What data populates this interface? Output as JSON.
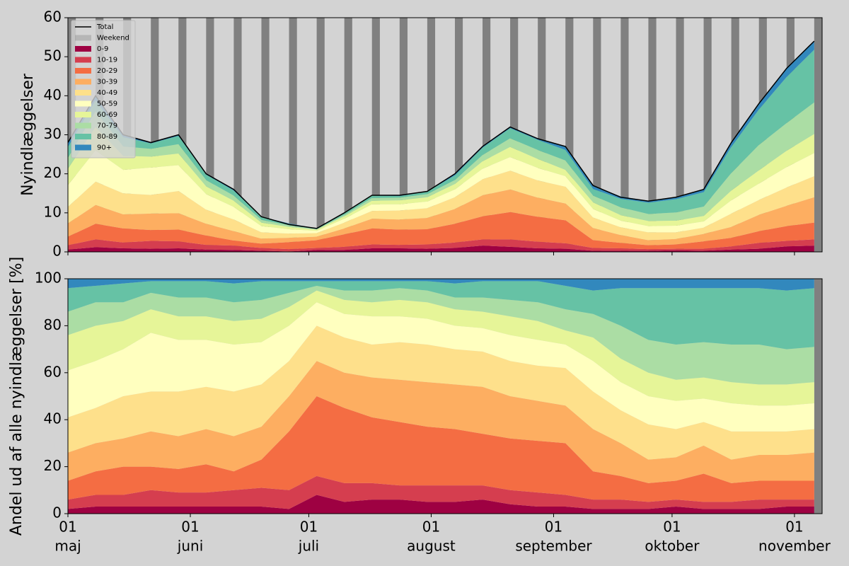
{
  "chart_data": [
    {
      "type": "stacked-area",
      "ylabel": "Nyindlæggelser",
      "xlim": [
        0,
        191
      ],
      "ylim": [
        0,
        60
      ],
      "yticks": [
        0,
        10,
        20,
        30,
        40,
        50,
        60
      ],
      "xticks": [
        0,
        31,
        61,
        92,
        123,
        153,
        184
      ],
      "legend": true,
      "legend_loc": "upper left",
      "x": [
        0,
        7,
        14,
        21,
        28,
        35,
        42,
        49,
        56,
        63,
        70,
        77,
        84,
        91,
        98,
        105,
        112,
        119,
        126,
        133,
        140,
        147,
        154,
        161,
        168,
        175,
        182,
        189
      ],
      "total": {
        "name": "Total",
        "color": "#000000",
        "values": [
          28,
          40,
          30,
          28,
          30,
          20,
          16,
          9,
          7,
          6,
          10,
          14.5,
          14.5,
          15.5,
          20,
          27,
          32,
          29,
          27,
          17,
          14,
          13,
          14,
          16,
          28,
          38,
          47,
          54
        ]
      },
      "weekends": {
        "name": "Weekend",
        "color": "#808080",
        "values": [
          [
            0,
            2
          ],
          [
            7,
            9
          ],
          [
            14,
            16
          ],
          [
            21,
            23
          ],
          [
            28,
            30
          ],
          [
            35,
            37
          ],
          [
            42,
            44
          ],
          [
            49,
            51
          ],
          [
            56,
            58
          ],
          [
            63,
            65
          ],
          [
            70,
            72
          ],
          [
            77,
            79
          ],
          [
            84,
            86
          ],
          [
            91,
            93
          ],
          [
            98,
            100
          ],
          [
            105,
            107
          ],
          [
            112,
            114
          ],
          [
            119,
            121
          ],
          [
            126,
            128
          ],
          [
            133,
            135
          ],
          [
            140,
            142
          ],
          [
            147,
            149
          ],
          [
            154,
            156
          ],
          [
            161,
            163
          ],
          [
            168,
            170
          ],
          [
            175,
            177
          ],
          [
            182,
            184
          ],
          [
            189,
            191
          ]
        ]
      },
      "series": [
        {
          "name": "0-9",
          "color": "#9e0142",
          "values": [
            0.6,
            1.2,
            0.9,
            0.8,
            0.9,
            0.6,
            0.5,
            0.3,
            0.1,
            0.5,
            0.5,
            0.9,
            0.9,
            0.8,
            1.0,
            1.6,
            1.3,
            0.9,
            0.8,
            0.3,
            0.3,
            0.3,
            0.4,
            0.3,
            0.6,
            0.8,
            1.4,
            1.6
          ]
        },
        {
          "name": "10-19",
          "color": "#d53e4f",
          "values": [
            1.1,
            2.0,
            1.5,
            2.0,
            1.8,
            1.2,
            1.1,
            0.7,
            0.6,
            0.5,
            0.8,
            1.0,
            0.9,
            1.1,
            1.4,
            1.6,
            1.9,
            1.7,
            1.4,
            0.7,
            0.6,
            0.4,
            0.4,
            0.5,
            0.8,
            1.5,
            1.4,
            1.6
          ]
        },
        {
          "name": "20-29",
          "color": "#f46d43",
          "values": [
            2.2,
            4.0,
            3.6,
            2.8,
            3.0,
            2.4,
            1.3,
            1.1,
            1.8,
            2.0,
            3.2,
            4.1,
            3.9,
            3.9,
            4.8,
            5.9,
            7.0,
            6.4,
            5.9,
            2.0,
            1.4,
            1.0,
            1.1,
            1.9,
            2.2,
            3.0,
            3.8,
            4.3
          ]
        },
        {
          "name": "30-39",
          "color": "#fdae61",
          "values": [
            3.4,
            4.8,
            3.6,
            4.2,
            4.2,
            3.0,
            2.4,
            1.3,
            1.1,
            0.9,
            1.5,
            2.5,
            2.6,
            2.9,
            3.8,
            5.4,
            5.8,
            4.9,
            4.3,
            3.1,
            2.0,
            1.3,
            1.4,
            1.9,
            2.8,
            4.2,
            5.2,
            6.5
          ]
        },
        {
          "name": "40-49",
          "color": "#fee08b",
          "values": [
            4.2,
            6.0,
            5.4,
            4.8,
            5.7,
            3.6,
            3.0,
            1.6,
            1.1,
            0.9,
            1.5,
            2.0,
            2.3,
            2.5,
            3.0,
            4.1,
            4.8,
            4.4,
            4.3,
            2.7,
            2.0,
            2.0,
            1.7,
            1.6,
            3.4,
            3.8,
            4.7,
            5.4
          ]
        },
        {
          "name": "50-59",
          "color": "#ffffbf",
          "values": [
            5.6,
            8.0,
            6.0,
            7.0,
            6.6,
            4.0,
            3.2,
            1.6,
            1.1,
            0.6,
            1.0,
            1.7,
            1.6,
            1.7,
            2.0,
            2.7,
            3.5,
            3.2,
            2.7,
            2.2,
            1.7,
            1.6,
            1.7,
            1.6,
            3.4,
            4.2,
            5.2,
            5.9
          ]
        },
        {
          "name": "60-69",
          "color": "#e6f598",
          "values": [
            4.2,
            6.0,
            3.6,
            2.8,
            3.0,
            2.0,
            1.6,
            0.9,
            0.6,
            0.3,
            0.6,
            0.9,
            1.0,
            1.1,
            1.4,
            1.9,
            2.6,
            2.3,
            1.6,
            1.7,
            1.4,
            1.3,
            1.3,
            1.4,
            2.5,
            3.4,
            4.2,
            4.9
          ]
        },
        {
          "name": "70-79",
          "color": "#abdda4",
          "values": [
            2.8,
            4.0,
            2.4,
            2.0,
            2.4,
            1.6,
            1.3,
            0.7,
            0.4,
            0.1,
            0.4,
            0.7,
            0.7,
            0.8,
            1.0,
            1.6,
            2.2,
            2.3,
            2.4,
            1.7,
            2.0,
            1.8,
            2.1,
            2.4,
            4.5,
            6.5,
            7.1,
            8.1
          ]
        },
        {
          "name": "80-89",
          "color": "#66c2a5",
          "values": [
            2.8,
            2.8,
            2.4,
            1.4,
            2.1,
            1.4,
            1.3,
            0.7,
            0.4,
            0.1,
            0.4,
            0.6,
            0.4,
            0.6,
            1.2,
            1.9,
            2.6,
            2.6,
            2.7,
            1.7,
            2.2,
            2.9,
            3.4,
            3.7,
            6.7,
            9.1,
            11.8,
            13.5
          ]
        },
        {
          "name": "90+",
          "color": "#3288bd",
          "values": [
            1.1,
            1.2,
            0.6,
            0.3,
            0.3,
            0.2,
            0.3,
            0.1,
            0.1,
            0.1,
            0.1,
            0.1,
            0.1,
            0.2,
            0.4,
            0.3,
            0.3,
            0.3,
            0.8,
            0.9,
            0.6,
            0.5,
            0.6,
            0.6,
            1.1,
            1.5,
            2.4,
            2.2
          ]
        }
      ]
    },
    {
      "type": "stacked-area",
      "ylabel": "Andel ud af alle nyindlæggelser [%]",
      "xlim": [
        0,
        191
      ],
      "ylim": [
        0,
        100
      ],
      "yticks": [
        0,
        20,
        40,
        60,
        80,
        100
      ],
      "xticks": [
        {
          "value": 0,
          "label": [
            "01",
            "maj"
          ]
        },
        {
          "value": 31,
          "label": [
            "01",
            "juni"
          ]
        },
        {
          "value": 61,
          "label": [
            "01",
            "juli"
          ]
        },
        {
          "value": 92,
          "label": [
            "01",
            "august"
          ]
        },
        {
          "value": 123,
          "label": [
            "01",
            "september"
          ]
        },
        {
          "value": 153,
          "label": [
            "01",
            "oktober"
          ]
        },
        {
          "value": 184,
          "label": [
            "01",
            "november"
          ]
        }
      ],
      "legend": false,
      "x": [
        0,
        7,
        14,
        21,
        28,
        35,
        42,
        49,
        56,
        63,
        70,
        77,
        84,
        91,
        98,
        105,
        112,
        119,
        126,
        133,
        140,
        147,
        154,
        161,
        168,
        175,
        182,
        189
      ],
      "weekends": {
        "color": "#808080",
        "values": [
          [
            189,
            191
          ]
        ]
      },
      "series": [
        {
          "color": "#9e0142",
          "values": [
            2,
            3,
            3,
            3,
            3,
            3,
            3,
            3,
            2,
            8,
            5,
            6,
            6,
            5,
            5,
            6,
            4,
            3,
            3,
            2,
            2,
            2,
            3,
            2,
            2,
            2,
            3,
            3
          ]
        },
        {
          "color": "#d53e4f",
          "values": [
            4,
            5,
            5,
            7,
            6,
            6,
            7,
            8,
            8,
            8,
            8,
            7,
            6,
            7,
            7,
            6,
            6,
            6,
            5,
            4,
            4,
            3,
            3,
            3,
            3,
            4,
            3,
            3
          ]
        },
        {
          "color": "#f46d43",
          "values": [
            8,
            10,
            12,
            10,
            10,
            12,
            8,
            12,
            25,
            34,
            32,
            28,
            27,
            25,
            24,
            22,
            22,
            22,
            22,
            12,
            10,
            8,
            8,
            12,
            8,
            8,
            8,
            8
          ]
        },
        {
          "color": "#fdae61",
          "values": [
            12,
            12,
            12,
            15,
            14,
            15,
            15,
            14,
            15,
            15,
            15,
            17,
            18,
            19,
            19,
            20,
            18,
            17,
            16,
            18,
            14,
            10,
            10,
            12,
            10,
            11,
            11,
            12
          ]
        },
        {
          "color": "#fee08b",
          "values": [
            15,
            15,
            18,
            17,
            19,
            18,
            19,
            18,
            15,
            15,
            15,
            14,
            16,
            16,
            15,
            15,
            15,
            15,
            16,
            16,
            14,
            15,
            12,
            10,
            12,
            10,
            10,
            10
          ]
        },
        {
          "color": "#ffffbf",
          "values": [
            20,
            20,
            20,
            25,
            22,
            20,
            20,
            18,
            15,
            10,
            10,
            12,
            11,
            11,
            10,
            10,
            11,
            11,
            10,
            13,
            12,
            12,
            12,
            10,
            12,
            11,
            11,
            11
          ]
        },
        {
          "color": "#e6f598",
          "values": [
            15,
            15,
            12,
            10,
            10,
            10,
            10,
            10,
            8,
            5,
            6,
            6,
            7,
            7,
            7,
            7,
            8,
            8,
            6,
            10,
            10,
            10,
            9,
            9,
            9,
            9,
            9,
            9
          ]
        },
        {
          "color": "#abdda4",
          "values": [
            10,
            10,
            8,
            7,
            8,
            8,
            8,
            8,
            6,
            2,
            4,
            5,
            5,
            5,
            5,
            6,
            7,
            8,
            9,
            10,
            14,
            14,
            15,
            15,
            16,
            17,
            15,
            15
          ]
        },
        {
          "color": "#66c2a5",
          "values": [
            10,
            7,
            8,
            5,
            7,
            7,
            8,
            8,
            5,
            2,
            4,
            4,
            3,
            4,
            6,
            7,
            8,
            9,
            10,
            10,
            16,
            22,
            24,
            23,
            24,
            24,
            25,
            25
          ]
        },
        {
          "color": "#3288bd",
          "values": [
            4,
            3,
            2,
            1,
            1,
            1,
            2,
            1,
            1,
            1,
            1,
            1,
            1,
            1,
            2,
            1,
            1,
            1,
            3,
            5,
            4,
            4,
            4,
            4,
            4,
            4,
            5,
            4
          ]
        }
      ]
    }
  ]
}
